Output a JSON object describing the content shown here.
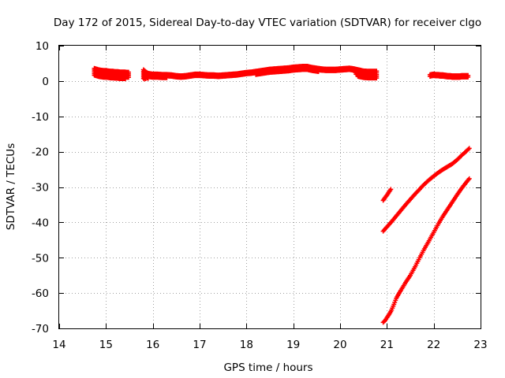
{
  "chart_data": {
    "type": "scatter",
    "title": "Day 172 of 2015, Sidereal Day-to-day VTEC variation (SDTVAR) for receiver clgo",
    "xlabel": "GPS time / hours",
    "ylabel": "SDTVAR / TECUs",
    "xlim": [
      14,
      23
    ],
    "ylim": [
      -70,
      10
    ],
    "xticks": [
      14,
      15,
      16,
      17,
      18,
      19,
      20,
      21,
      22,
      23
    ],
    "yticks": [
      10,
      0,
      -10,
      -20,
      -30,
      -40,
      -50,
      -60,
      -70
    ],
    "grid": true,
    "legend": "none",
    "marker": "plus",
    "color": "#ff0000",
    "series": [
      {
        "x": [
          14.75,
          14.8,
          14.85,
          14.9,
          14.95,
          15.0,
          15.05,
          15.1,
          15.15,
          15.2,
          15.25,
          15.3,
          15.35,
          15.4,
          15.45,
          15.5
        ],
        "upper": [
          3.6,
          3.4,
          3.2,
          3.1,
          3.0,
          3.0,
          2.9,
          2.8,
          2.8,
          2.7,
          2.7,
          2.6,
          2.6,
          2.6,
          2.5,
          2.5
        ],
        "lower": [
          1.2,
          1.0,
          0.9,
          0.9,
          0.8,
          0.8,
          0.8,
          0.7,
          0.7,
          0.7,
          0.6,
          0.6,
          0.6,
          0.6,
          0.6,
          0.6
        ]
      },
      {
        "x": [
          15.8,
          15.85,
          15.9,
          16.0,
          16.1,
          16.2,
          16.3,
          16.4,
          16.5,
          16.6,
          16.7,
          16.8,
          16.9,
          17.0,
          17.1,
          17.2,
          17.3,
          17.4,
          17.5,
          17.6,
          17.7,
          17.8,
          17.9,
          18.0,
          18.1,
          18.2,
          18.3,
          18.4,
          18.5,
          18.6,
          18.7,
          18.8,
          18.9,
          19.0,
          19.1,
          19.2,
          19.3,
          19.4,
          19.5,
          19.6,
          19.7,
          19.8,
          19.9,
          20.0,
          20.1,
          20.2,
          20.3,
          20.4,
          20.5,
          20.6,
          20.7,
          20.8
        ],
        "upper": [
          3.2,
          2.6,
          2.2,
          2.0,
          2.0,
          1.9,
          1.9,
          1.8,
          1.6,
          1.5,
          1.6,
          1.8,
          2.0,
          2.0,
          1.9,
          1.8,
          1.8,
          1.7,
          1.8,
          1.9,
          2.0,
          2.1,
          2.3,
          2.5,
          2.6,
          2.8,
          3.0,
          3.2,
          3.4,
          3.5,
          3.6,
          3.7,
          3.8,
          4.0,
          4.1,
          4.2,
          4.2,
          3.9,
          3.7,
          3.5,
          3.4,
          3.4,
          3.4,
          3.5,
          3.6,
          3.7,
          3.5,
          3.2,
          2.9,
          2.8,
          2.8,
          2.8
        ],
        "lower": [
          0.5,
          0.6,
          0.7,
          0.8,
          0.8,
          0.9,
          0.9,
          1.0,
          0.9,
          0.8,
          0.9,
          1.0,
          1.1,
          1.1,
          1.0,
          0.9,
          0.9,
          0.8,
          0.9,
          1.0,
          1.1,
          1.3,
          1.5,
          1.6,
          1.7,
          1.8,
          1.9,
          2.0,
          2.1,
          2.2,
          2.3,
          2.4,
          2.5,
          2.6,
          2.7,
          2.8,
          2.8,
          2.7,
          2.6,
          2.6,
          2.6,
          2.7,
          2.8,
          3.0,
          3.1,
          3.0,
          2.6,
          0.8,
          0.8,
          0.8,
          0.8,
          0.8
        ]
      },
      {
        "x": [
          21.92,
          21.95,
          22.0,
          22.05,
          22.1,
          22.15,
          22.2,
          22.25,
          22.3,
          22.35,
          22.4,
          22.45,
          22.5,
          22.55,
          22.6,
          22.65,
          22.7,
          22.75
        ],
        "upper": [
          1.8,
          1.9,
          2.0,
          1.9,
          1.9,
          1.8,
          1.8,
          1.7,
          1.6,
          1.6,
          1.5,
          1.5,
          1.5,
          1.5,
          1.6,
          1.6,
          1.6,
          1.6
        ],
        "lower": [
          1.2,
          1.2,
          1.3,
          1.3,
          1.3,
          1.2,
          1.2,
          1.1,
          1.1,
          1.1,
          1.0,
          1.0,
          1.0,
          1.0,
          1.0,
          1.0,
          1.0,
          1.0
        ]
      },
      {
        "x": [
          20.92,
          20.95,
          21.0,
          21.05,
          21.1
        ],
        "y": [
          -33.8,
          -33.2,
          -32.3,
          -31.3,
          -30.3
        ]
      },
      {
        "x": [
          20.92,
          21.0,
          21.1,
          21.2,
          21.3,
          21.4,
          21.5,
          21.6,
          21.7,
          21.8,
          21.9,
          22.0,
          22.1,
          22.2,
          22.3,
          22.4,
          22.5,
          22.6,
          22.7,
          22.78
        ],
        "y": [
          -42.5,
          -41.3,
          -39.8,
          -38.2,
          -36.6,
          -35.0,
          -33.5,
          -32.0,
          -30.6,
          -29.2,
          -28.0,
          -26.9,
          -25.9,
          -25.0,
          -24.2,
          -23.4,
          -22.3,
          -21.0,
          -19.8,
          -18.8
        ]
      },
      {
        "x": [
          20.92,
          20.96,
          21.0,
          21.05,
          21.1,
          21.15,
          21.2,
          21.25,
          21.3,
          21.4,
          21.5,
          21.6,
          21.7,
          21.8,
          21.9,
          22.0,
          22.1,
          22.2,
          22.3,
          22.4,
          22.5,
          22.6,
          22.7,
          22.78
        ],
        "y": [
          -68.3,
          -67.8,
          -67.0,
          -66.0,
          -64.8,
          -63.2,
          -61.5,
          -60.3,
          -59.2,
          -57.0,
          -55.0,
          -52.6,
          -50.0,
          -47.5,
          -45.2,
          -42.8,
          -40.4,
          -38.2,
          -36.2,
          -34.2,
          -32.2,
          -30.3,
          -28.6,
          -27.3
        ]
      }
    ]
  }
}
